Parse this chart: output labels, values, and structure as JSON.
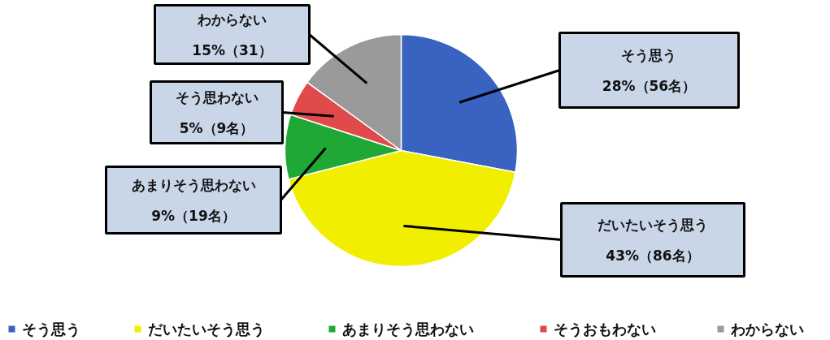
{
  "chart_data": {
    "type": "pie",
    "categories": [
      "そう思う",
      "だいたいそう思う",
      "あまりそう思わない",
      "そうおもわない",
      "わからない"
    ],
    "values": [
      28,
      43,
      9,
      5,
      15
    ],
    "colors": [
      "#3a62c0",
      "#f2ee00",
      "#1fa836",
      "#e04a4a",
      "#9a9a9a"
    ],
    "value_labels": [
      "そう思う\n28%（56名）",
      "だいたいそう思う\n43%（86名）",
      "あまりそう思わない\n9%（19名）",
      "そう思わない\n5%（9名）",
      "わからない\n15%（31）"
    ],
    "legend": "bottom"
  }
}
